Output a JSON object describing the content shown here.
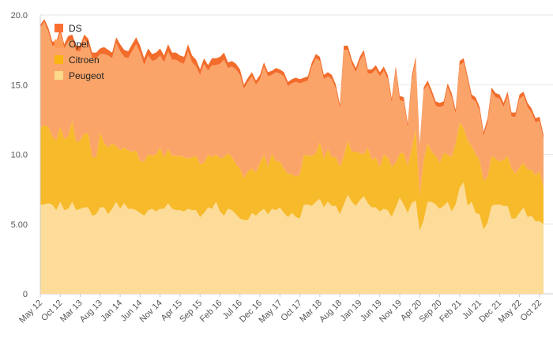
{
  "chart_data": {
    "type": "area",
    "stacked": true,
    "title": "",
    "xlabel": "",
    "ylabel": "",
    "ylim": [
      0,
      20
    ],
    "grid": true,
    "legend_position": "top-left",
    "y_ticks": [
      "0",
      "5.00",
      "10.0",
      "15.0",
      "20.0"
    ],
    "y_tick_values": [
      0,
      5,
      10,
      15,
      20
    ],
    "x_tick_labels": [
      "May 12",
      "Oct 12",
      "Mar 13",
      "Aug 13",
      "Jan 14",
      "Jun 14",
      "Nov 14",
      "Apr 15",
      "Sep 15",
      "Feb 16",
      "Jul 16",
      "Dec 16",
      "May 17",
      "Oct 17",
      "Mar 18",
      "Aug 18",
      "Jan 19",
      "Jun 19",
      "Nov 19",
      "Apr 20",
      "Sep 20",
      "Feb 21",
      "Jul 21",
      "Dec 21",
      "May 22",
      "Oct 22"
    ],
    "x_tick_indices": [
      0,
      5,
      10,
      15,
      20,
      25,
      30,
      35,
      40,
      45,
      50,
      55,
      60,
      65,
      70,
      75,
      80,
      85,
      90,
      95,
      100,
      105,
      110,
      115,
      120,
      125
    ],
    "colors": {
      "DS": "#f26c2b",
      "Opel": "#fba469",
      "Citroen": "#f7ba2b",
      "Peugeot": "#fcdc98"
    },
    "legend_colors": {
      "DS": "#fc6f32",
      "Opel": "#fb9b56",
      "Citroen": "#fab512",
      "Peugeot": "#fcd98b"
    },
    "series": [
      {
        "name": "Peugeot",
        "values": [
          6.4,
          6.4,
          6.5,
          6.4,
          6.0,
          6.6,
          6.0,
          6.1,
          6.6,
          6.0,
          6.1,
          6.2,
          6.2,
          5.6,
          5.7,
          6.2,
          6.2,
          5.7,
          6.1,
          6.6,
          6.1,
          6.5,
          6.1,
          6.1,
          6.0,
          5.8,
          5.6,
          6.0,
          6.1,
          5.9,
          6.1,
          6.1,
          6.5,
          6.1,
          6.0,
          6.0,
          5.9,
          6.1,
          6.0,
          6.0,
          5.5,
          5.8,
          6.2,
          6.1,
          6.6,
          5.9,
          5.6,
          6.1,
          6.0,
          5.7,
          5.4,
          5.3,
          5.3,
          5.8,
          5.6,
          5.9,
          6.1,
          5.7,
          6.1,
          6.0,
          6.2,
          5.8,
          5.5,
          5.8,
          5.5,
          5.4,
          6.4,
          6.4,
          6.3,
          6.6,
          6.8,
          6.2,
          6.6,
          6.3,
          6.3,
          5.7,
          6.4,
          7.1,
          6.6,
          6.3,
          6.7,
          7.0,
          6.5,
          6.2,
          6.2,
          5.9,
          6.1,
          6.0,
          5.5,
          6.2,
          6.9,
          6.4,
          5.8,
          6.5,
          6.7,
          4.5,
          5.3,
          6.6,
          6.6,
          6.4,
          6.1,
          6.3,
          6.6,
          5.9,
          6.4,
          7.6,
          8.0,
          6.3,
          6.6,
          5.8,
          5.7,
          4.6,
          5.1,
          6.3,
          6.4,
          6.4,
          6.3,
          6.3,
          5.4,
          5.4,
          5.8,
          6.2,
          5.5,
          5.6,
          5.2,
          5.2,
          5.0
        ],
        "note": "values in thousands, layer 1"
      },
      {
        "name": "Citroen",
        "values": [
          5.5,
          5.7,
          5.5,
          4.9,
          5.0,
          5.4,
          5.1,
          5.2,
          5.8,
          4.9,
          4.9,
          5.3,
          5.3,
          4.2,
          4.1,
          5.4,
          4.6,
          4.8,
          4.7,
          4.0,
          4.2,
          4.0,
          4.2,
          4.1,
          4.3,
          3.7,
          3.9,
          4.0,
          3.8,
          4.1,
          4.4,
          3.7,
          3.9,
          3.8,
          3.9,
          3.9,
          3.9,
          3.6,
          3.8,
          3.9,
          3.8,
          3.6,
          3.8,
          3.7,
          3.4,
          3.8,
          4.2,
          4.0,
          3.8,
          3.6,
          3.6,
          3.0,
          3.5,
          3.2,
          3.1,
          3.5,
          3.9,
          3.4,
          4.0,
          3.5,
          3.3,
          3.2,
          3.1,
          2.8,
          2.9,
          3.2,
          3.6,
          3.5,
          3.6,
          3.5,
          4.1,
          3.5,
          3.8,
          3.5,
          3.5,
          3.4,
          3.5,
          3.9,
          3.6,
          3.9,
          3.4,
          3.0,
          4.0,
          3.4,
          3.6,
          3.2,
          3.9,
          3.8,
          3.6,
          3.2,
          3.2,
          3.7,
          3.4,
          3.9,
          5.1,
          2.6,
          4.3,
          4.2,
          3.6,
          3.5,
          3.3,
          3.8,
          3.4,
          3.9,
          4.4,
          4.7,
          3.9,
          4.7,
          4.0,
          4.2,
          3.9,
          3.5,
          3.3,
          3.6,
          3.3,
          3.1,
          3.3,
          3.6,
          3.6,
          3.2,
          3.3,
          3.2,
          3.4,
          3.3,
          3.3,
          3.6,
          2.7
        ]
      },
      {
        "name": "Opel",
        "values": [
          7.2,
          7.4,
          6.8,
          6.5,
          6.8,
          6.7,
          6.5,
          6.8,
          5.8,
          6.5,
          6.4,
          6.8,
          6.4,
          7.1,
          7.1,
          5.6,
          6.4,
          6.6,
          6.1,
          7.4,
          7.1,
          6.5,
          6.6,
          7.2,
          7.6,
          7.8,
          6.9,
          7.1,
          6.8,
          6.8,
          6.6,
          6.8,
          7.0,
          6.9,
          6.9,
          6.7,
          6.7,
          7.7,
          6.8,
          6.4,
          6.4,
          7.1,
          6.0,
          6.6,
          6.4,
          6.8,
          7.0,
          6.1,
          6.5,
          6.8,
          6.7,
          6.4,
          6.4,
          6.6,
          6.3,
          6.0,
          6.3,
          6.5,
          5.6,
          6.4,
          6.3,
          6.6,
          6.3,
          6.5,
          6.8,
          6.5,
          5.2,
          5.4,
          6.4,
          6.8,
          5.8,
          5.7,
          5.2,
          5.6,
          4.9,
          4.2,
          7.6,
          6.5,
          6.3,
          5.7,
          6.6,
          7.2,
          5.3,
          6.2,
          6.3,
          6.5,
          6.0,
          5.6,
          4.6,
          6.6,
          3.8,
          3.7,
          2.7,
          4.9,
          4.9,
          3.4,
          5.0,
          4.2,
          4.1,
          3.6,
          4.0,
          3.4,
          4.8,
          4.3,
          2.1,
          4.1,
          4.7,
          4.3,
          3.4,
          3.8,
          3.5,
          3.2,
          3.9,
          4.6,
          4.4,
          4.5,
          3.8,
          4.3,
          3.7,
          4.1,
          4.9,
          4.8,
          4.5,
          4.1,
          3.8,
          3.6,
          3.4
        ]
      },
      {
        "name": "DS",
        "values": [
          0.2,
          0.2,
          0.3,
          0.3,
          0.3,
          0.3,
          0.3,
          0.4,
          0.4,
          0.4,
          0.4,
          0.3,
          0.4,
          0.4,
          0.4,
          0.4,
          0.5,
          0.4,
          0.4,
          0.4,
          0.5,
          0.5,
          0.5,
          0.5,
          0.5,
          0.5,
          0.5,
          0.5,
          0.5,
          0.5,
          0.5,
          0.5,
          0.5,
          0.5,
          0.5,
          0.5,
          0.5,
          0.5,
          0.5,
          0.5,
          0.4,
          0.4,
          0.4,
          0.5,
          0.5,
          0.5,
          0.5,
          0.4,
          0.4,
          0.4,
          0.4,
          0.3,
          0.3,
          0.3,
          0.3,
          0.3,
          0.3,
          0.3,
          0.3,
          0.3,
          0.3,
          0.3,
          0.3,
          0.3,
          0.3,
          0.3,
          0.3,
          0.3,
          0.3,
          0.3,
          0.3,
          0.3,
          0.3,
          0.3,
          0.3,
          0.3,
          0.3,
          0.3,
          0.3,
          0.3,
          0.3,
          0.3,
          0.3,
          0.3,
          0.3,
          0.3,
          0.3,
          0.3,
          0.3,
          0.3,
          0.3,
          0.3,
          0.3,
          0.3,
          0.3,
          0.2,
          0.2,
          0.3,
          0.3,
          0.3,
          0.3,
          0.3,
          0.3,
          0.3,
          0.3,
          0.3,
          0.3,
          0.3,
          0.3,
          0.3,
          0.3,
          0.3,
          0.3,
          0.3,
          0.3,
          0.3,
          0.3,
          0.3,
          0.3,
          0.3,
          0.3,
          0.3,
          0.3,
          0.3,
          0.3,
          0.3,
          0.3
        ]
      }
    ],
    "legend_order": [
      "DS",
      "Opel",
      "Citroen",
      "Peugeot"
    ]
  }
}
